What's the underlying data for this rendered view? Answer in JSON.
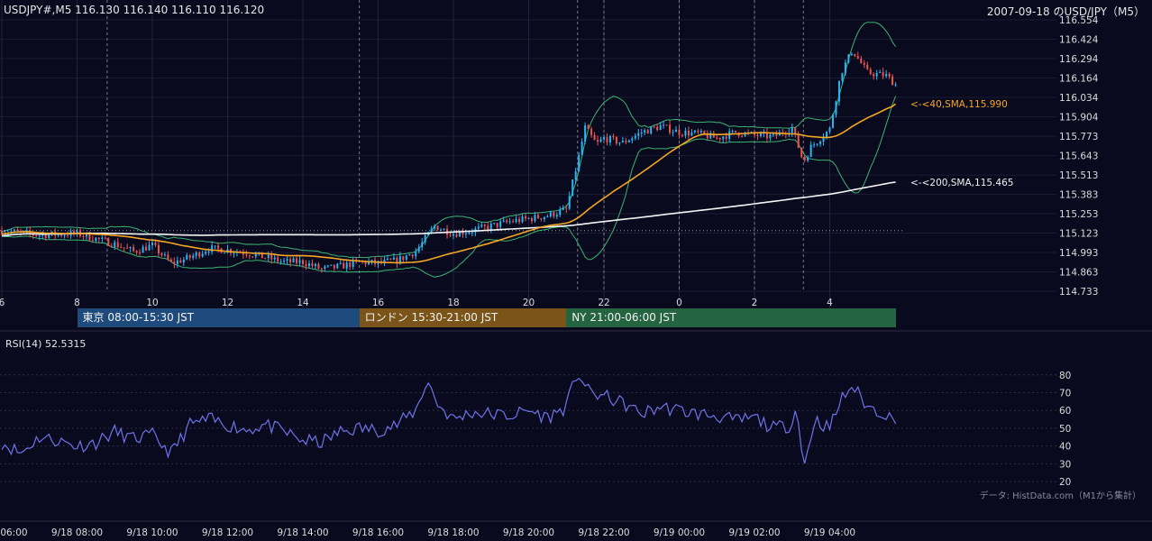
{
  "header": {
    "symbol_line": "USDJPY#,M5 116.130 116.140 116.110 116.120",
    "title": "2007-09-18 のUSD/JPY（M5）"
  },
  "sessions": [
    {
      "label": "東京 08:00-15:30 JST",
      "color": "#1f4b7c"
    },
    {
      "label": "ロンドン 15:30-21:00 JST",
      "color": "#7a5418"
    },
    {
      "label": "NY 21:00-06:00 JST",
      "color": "#246440"
    }
  ],
  "rsi_label": "RSI(14) 52.5315",
  "credit": "データ: HistData.com（M1から集計）",
  "colors": {
    "background": "#0a0a1e",
    "bull": "#29b6f6",
    "bear": "#ef5350",
    "bands": "#3cb371",
    "sma40": "#f5a623",
    "sma200": "#f5f5f5",
    "rsi": "#6f73e8"
  },
  "chart_data": [
    {
      "type": "candlestick",
      "title": "USDJPY#,M5",
      "ylim": [
        114.733,
        116.554
      ],
      "yticks": [
        "116.554",
        "116.424",
        "116.294",
        "116.164",
        "116.034",
        "115.904",
        "115.773",
        "115.643",
        "115.513",
        "115.383",
        "115.253",
        "115.123",
        "114.993",
        "114.863",
        "114.733"
      ],
      "xticks": [
        "6",
        "8",
        "10",
        "12",
        "14",
        "16",
        "18",
        "20",
        "22",
        "0",
        "2",
        "4"
      ],
      "xtick_hours": [
        6,
        8,
        10,
        12,
        14,
        16,
        18,
        20,
        22,
        24,
        26,
        28
      ],
      "x_range_hours": [
        6,
        29.75
      ],
      "overlays": [
        {
          "name": "SMA(40)",
          "label": "<-<40,SMA,115.990",
          "last": 115.99
        },
        {
          "name": "SMA(200)",
          "label": "<-<200,SMA,115.465",
          "last": 115.465
        },
        {
          "name": "Bollinger Bands"
        }
      ],
      "reference_line": 115.14,
      "dashed_session_lines_hours": [
        8.8,
        15.5,
        21.3,
        22.0,
        24.0,
        26.0,
        27.3
      ],
      "anchors": [
        {
          "h": 6.0,
          "c": 115.14
        },
        {
          "h": 7.0,
          "c": 115.11
        },
        {
          "h": 8.0,
          "c": 115.12
        },
        {
          "h": 9.0,
          "c": 115.05
        },
        {
          "h": 9.5,
          "c": 115.0
        },
        {
          "h": 10.0,
          "c": 115.04
        },
        {
          "h": 10.5,
          "c": 114.92
        },
        {
          "h": 11.0,
          "c": 114.96
        },
        {
          "h": 11.5,
          "c": 115.02
        },
        {
          "h": 12.0,
          "c": 115.01
        },
        {
          "h": 12.5,
          "c": 114.99
        },
        {
          "h": 13.0,
          "c": 114.96
        },
        {
          "h": 13.5,
          "c": 114.93
        },
        {
          "h": 14.0,
          "c": 114.93
        },
        {
          "h": 14.5,
          "c": 114.88
        },
        {
          "h": 15.0,
          "c": 114.9
        },
        {
          "h": 15.5,
          "c": 114.93
        },
        {
          "h": 16.0,
          "c": 114.92
        },
        {
          "h": 16.5,
          "c": 114.94
        },
        {
          "h": 17.0,
          "c": 115.0
        },
        {
          "h": 17.5,
          "c": 115.17
        },
        {
          "h": 18.0,
          "c": 115.12
        },
        {
          "h": 18.5,
          "c": 115.14
        },
        {
          "h": 19.0,
          "c": 115.17
        },
        {
          "h": 19.5,
          "c": 115.2
        },
        {
          "h": 20.0,
          "c": 115.22
        },
        {
          "h": 20.5,
          "c": 115.24
        },
        {
          "h": 21.0,
          "c": 115.28
        },
        {
          "h": 21.3,
          "c": 115.6
        },
        {
          "h": 21.5,
          "c": 115.83
        },
        {
          "h": 21.8,
          "c": 115.72
        },
        {
          "h": 22.0,
          "c": 115.76
        },
        {
          "h": 22.5,
          "c": 115.73
        },
        {
          "h": 23.0,
          "c": 115.8
        },
        {
          "h": 23.5,
          "c": 115.84
        },
        {
          "h": 24.0,
          "c": 115.8
        },
        {
          "h": 24.5,
          "c": 115.79
        },
        {
          "h": 25.0,
          "c": 115.76
        },
        {
          "h": 25.5,
          "c": 115.8
        },
        {
          "h": 26.0,
          "c": 115.78
        },
        {
          "h": 26.5,
          "c": 115.77
        },
        {
          "h": 27.0,
          "c": 115.83
        },
        {
          "h": 27.3,
          "c": 115.6
        },
        {
          "h": 27.5,
          "c": 115.7
        },
        {
          "h": 28.0,
          "c": 115.82
        },
        {
          "h": 28.3,
          "c": 116.2
        },
        {
          "h": 28.6,
          "c": 116.35
        },
        {
          "h": 29.0,
          "c": 116.2
        },
        {
          "h": 29.5,
          "c": 116.18
        },
        {
          "h": 29.75,
          "c": 116.12
        }
      ]
    },
    {
      "type": "line",
      "title": "RSI(14)",
      "last": 52.5315,
      "ylim": [
        17,
        89
      ],
      "yticks": [
        80,
        70,
        60,
        50,
        40,
        30,
        20
      ],
      "xticks": [
        "9/18 06:00",
        "9/18 08:00",
        "9/18 10:00",
        "9/18 12:00",
        "9/18 14:00",
        "9/18 16:00",
        "9/18 18:00",
        "9/18 20:00",
        "9/18 22:00",
        "9/19 00:00",
        "9/19 02:00",
        "9/19 04:00"
      ],
      "anchors": [
        {
          "h": 6.0,
          "v": 42
        },
        {
          "h": 6.5,
          "v": 36
        },
        {
          "h": 7.0,
          "v": 45
        },
        {
          "h": 7.5,
          "v": 43
        },
        {
          "h": 8.0,
          "v": 40
        },
        {
          "h": 8.5,
          "v": 42
        },
        {
          "h": 9.0,
          "v": 48
        },
        {
          "h": 9.5,
          "v": 44
        },
        {
          "h": 10.0,
          "v": 46
        },
        {
          "h": 10.5,
          "v": 36
        },
        {
          "h": 11.0,
          "v": 52
        },
        {
          "h": 11.5,
          "v": 55
        },
        {
          "h": 12.0,
          "v": 52
        },
        {
          "h": 12.5,
          "v": 49
        },
        {
          "h": 13.0,
          "v": 52
        },
        {
          "h": 13.5,
          "v": 48
        },
        {
          "h": 14.0,
          "v": 43
        },
        {
          "h": 14.5,
          "v": 42
        },
        {
          "h": 15.0,
          "v": 48
        },
        {
          "h": 15.5,
          "v": 50
        },
        {
          "h": 16.0,
          "v": 49
        },
        {
          "h": 16.5,
          "v": 52
        },
        {
          "h": 17.0,
          "v": 60
        },
        {
          "h": 17.3,
          "v": 77
        },
        {
          "h": 17.6,
          "v": 63
        },
        {
          "h": 18.0,
          "v": 55
        },
        {
          "h": 18.5,
          "v": 59
        },
        {
          "h": 19.0,
          "v": 58
        },
        {
          "h": 19.5,
          "v": 57
        },
        {
          "h": 20.0,
          "v": 60
        },
        {
          "h": 20.5,
          "v": 56
        },
        {
          "h": 21.0,
          "v": 62
        },
        {
          "h": 21.3,
          "v": 82
        },
        {
          "h": 21.6,
          "v": 70
        },
        {
          "h": 22.0,
          "v": 68
        },
        {
          "h": 22.5,
          "v": 64
        },
        {
          "h": 23.0,
          "v": 58
        },
        {
          "h": 23.5,
          "v": 62
        },
        {
          "h": 24.0,
          "v": 60
        },
        {
          "h": 24.5,
          "v": 58
        },
        {
          "h": 25.0,
          "v": 57
        },
        {
          "h": 25.5,
          "v": 54
        },
        {
          "h": 26.0,
          "v": 56
        },
        {
          "h": 26.5,
          "v": 50
        },
        {
          "h": 27.0,
          "v": 52
        },
        {
          "h": 27.1,
          "v": 66
        },
        {
          "h": 27.3,
          "v": 27
        },
        {
          "h": 27.6,
          "v": 55
        },
        {
          "h": 28.0,
          "v": 50
        },
        {
          "h": 28.3,
          "v": 66
        },
        {
          "h": 28.6,
          "v": 74
        },
        {
          "h": 29.0,
          "v": 62
        },
        {
          "h": 29.5,
          "v": 58
        },
        {
          "h": 29.75,
          "v": 52.5
        }
      ]
    }
  ]
}
